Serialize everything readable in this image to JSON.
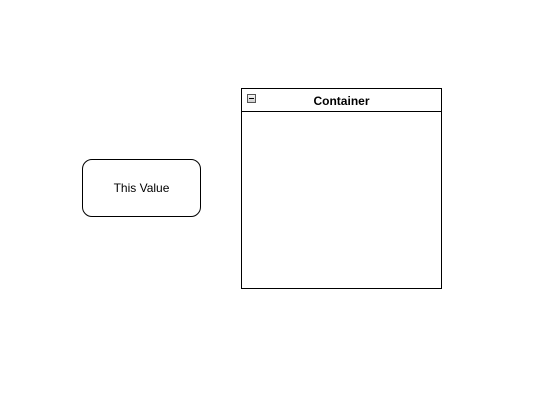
{
  "diagram": {
    "nodes": [
      {
        "label": "This Value"
      }
    ],
    "container": {
      "title": "Container",
      "collapse_icon": "minus-square-icon"
    }
  }
}
